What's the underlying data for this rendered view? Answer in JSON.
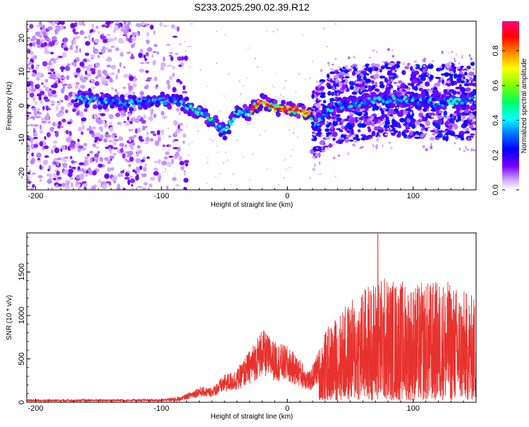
{
  "title": "S233.2025.290.02.39.R12",
  "chart_data": [
    {
      "type": "heatmap",
      "xlabel": "Height of straight line (km)",
      "ylabel": "Frequency (Hz)",
      "xlim": [
        -207,
        150
      ],
      "ylim": [
        -25,
        25
      ],
      "xticks": [
        -200,
        -100,
        0,
        100
      ],
      "yticks": [
        20,
        10,
        0,
        -10,
        -20
      ],
      "colorbar": {
        "label": "Normalized spectral amplitude",
        "range": [
          0,
          0.97
        ],
        "ticks": [
          0.0,
          0.2,
          0.4,
          0.6,
          0.8
        ],
        "tick_labels": [
          "0.0",
          "0.2",
          "0.4",
          "0.6",
          "0.8"
        ]
      },
      "ridge": [
        {
          "x": -165,
          "y": 2
        },
        {
          "x": -150,
          "y": 1.5
        },
        {
          "x": -135,
          "y": 1
        },
        {
          "x": -120,
          "y": 0.5
        },
        {
          "x": -100,
          "y": 1.5
        },
        {
          "x": -85,
          "y": 1
        },
        {
          "x": -75,
          "y": -1
        },
        {
          "x": -65,
          "y": -3
        },
        {
          "x": -55,
          "y": -6
        },
        {
          "x": -50,
          "y": -8
        },
        {
          "x": -45,
          "y": -5
        },
        {
          "x": -40,
          "y": -2
        },
        {
          "x": -30,
          "y": -2
        },
        {
          "x": -25,
          "y": 0
        },
        {
          "x": -20,
          "y": 1.5
        },
        {
          "x": -15,
          "y": 0
        },
        {
          "x": -8,
          "y": -1
        },
        {
          "x": 0,
          "y": -1
        },
        {
          "x": 10,
          "y": -1.5
        },
        {
          "x": 18,
          "y": -2.5
        },
        {
          "x": 22,
          "y": -6
        },
        {
          "x": 28,
          "y": -3
        },
        {
          "x": 40,
          "y": 0
        },
        {
          "x": 60,
          "y": 1
        },
        {
          "x": 80,
          "y": 2
        },
        {
          "x": 100,
          "y": 1.5
        },
        {
          "x": 120,
          "y": 1
        },
        {
          "x": 140,
          "y": 1
        },
        {
          "x": 150,
          "y": 1.5
        }
      ]
    },
    {
      "type": "line",
      "xlabel": "Height of straight line (km)",
      "ylabel": "SNR (10 * v/v)",
      "xlim": [
        -207,
        150
      ],
      "ylim": [
        0,
        1950
      ],
      "xticks": [
        -200,
        -100,
        0,
        100
      ],
      "yticks": [
        0,
        500,
        1000,
        1500
      ],
      "color": "#e8322e",
      "envelope": [
        {
          "x": -207,
          "y": 25
        },
        {
          "x": -100,
          "y": 30
        },
        {
          "x": -85,
          "y": 60
        },
        {
          "x": -70,
          "y": 180
        },
        {
          "x": -60,
          "y": 170
        },
        {
          "x": -50,
          "y": 320
        },
        {
          "x": -40,
          "y": 380
        },
        {
          "x": -30,
          "y": 600
        },
        {
          "x": -20,
          "y": 850
        },
        {
          "x": -10,
          "y": 700
        },
        {
          "x": 0,
          "y": 650
        },
        {
          "x": 10,
          "y": 500
        },
        {
          "x": 18,
          "y": 350
        },
        {
          "x": 30,
          "y": 800
        },
        {
          "x": 40,
          "y": 1000
        },
        {
          "x": 60,
          "y": 1300
        },
        {
          "x": 75,
          "y": 1450
        },
        {
          "x": 100,
          "y": 1350
        },
        {
          "x": 125,
          "y": 1400
        },
        {
          "x": 150,
          "y": 1200
        }
      ],
      "peak": {
        "x": 72,
        "y": 1940
      }
    }
  ]
}
